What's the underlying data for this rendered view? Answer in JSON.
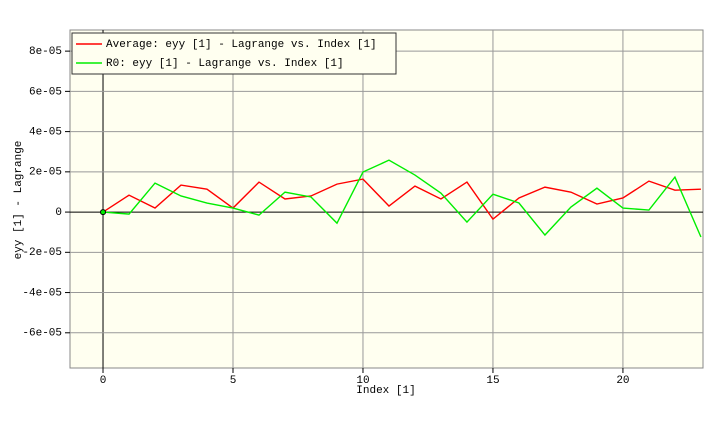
{
  "chart_data": {
    "type": "line",
    "x_label": "Index [1]",
    "y_label": "eyy [1] - Lagrange",
    "x": [
      0,
      1,
      2,
      3,
      4,
      5,
      6,
      7,
      8,
      9,
      10,
      11,
      12,
      13,
      14,
      15,
      16,
      17,
      18,
      19,
      20,
      21,
      22,
      23
    ],
    "series": [
      {
        "name": "Average: eyy [1] - Lagrange vs. Index [1]",
        "color": "#ff0000",
        "values": [
          0,
          8.4e-06,
          2e-06,
          1.34e-05,
          1.14e-05,
          2e-06,
          1.49e-05,
          6.5e-06,
          8e-06,
          1.39e-05,
          1.64e-05,
          3e-06,
          1.29e-05,
          6.5e-06,
          1.49e-05,
          -3.5e-06,
          7e-06,
          1.24e-05,
          9.9e-06,
          4e-06,
          7e-06,
          1.54e-05,
          1.09e-05,
          1.14e-05
        ]
      },
      {
        "name": "R0: eyy [1] - Lagrange vs. Index [1]",
        "color": "#00ee00",
        "values": [
          0,
          -1e-06,
          1.44e-05,
          8e-06,
          4.5e-06,
          2e-06,
          -1.5e-06,
          9.9e-06,
          7.5e-06,
          -5.5e-06,
          1.99e-05,
          2.58e-05,
          1.84e-05,
          9.4e-06,
          -5e-06,
          8.9e-06,
          4.5e-06,
          -1.14e-05,
          2.5e-06,
          1.19e-05,
          2e-06,
          1e-06,
          1.74e-05,
          -1.24e-05
        ]
      }
    ],
    "xlim": [
      -1.27,
      23.08
    ],
    "ylim": [
      -7.75e-05,
      9.05e-05
    ],
    "xticks": [
      0,
      5,
      10,
      15,
      20
    ],
    "yticks": [
      {
        "value": -6e-05,
        "label": "-6e-05"
      },
      {
        "value": -4e-05,
        "label": "-4e-05"
      },
      {
        "value": -2e-05,
        "label": "-2e-05"
      },
      0,
      {
        "value": 2e-05,
        "label": "2e-05"
      },
      {
        "value": 4e-05,
        "label": "4e-05"
      },
      {
        "value": 6e-05,
        "label": "6e-05"
      },
      {
        "value": 8e-05,
        "label": "8e-05"
      }
    ],
    "grid": true,
    "legend": "top-left"
  }
}
